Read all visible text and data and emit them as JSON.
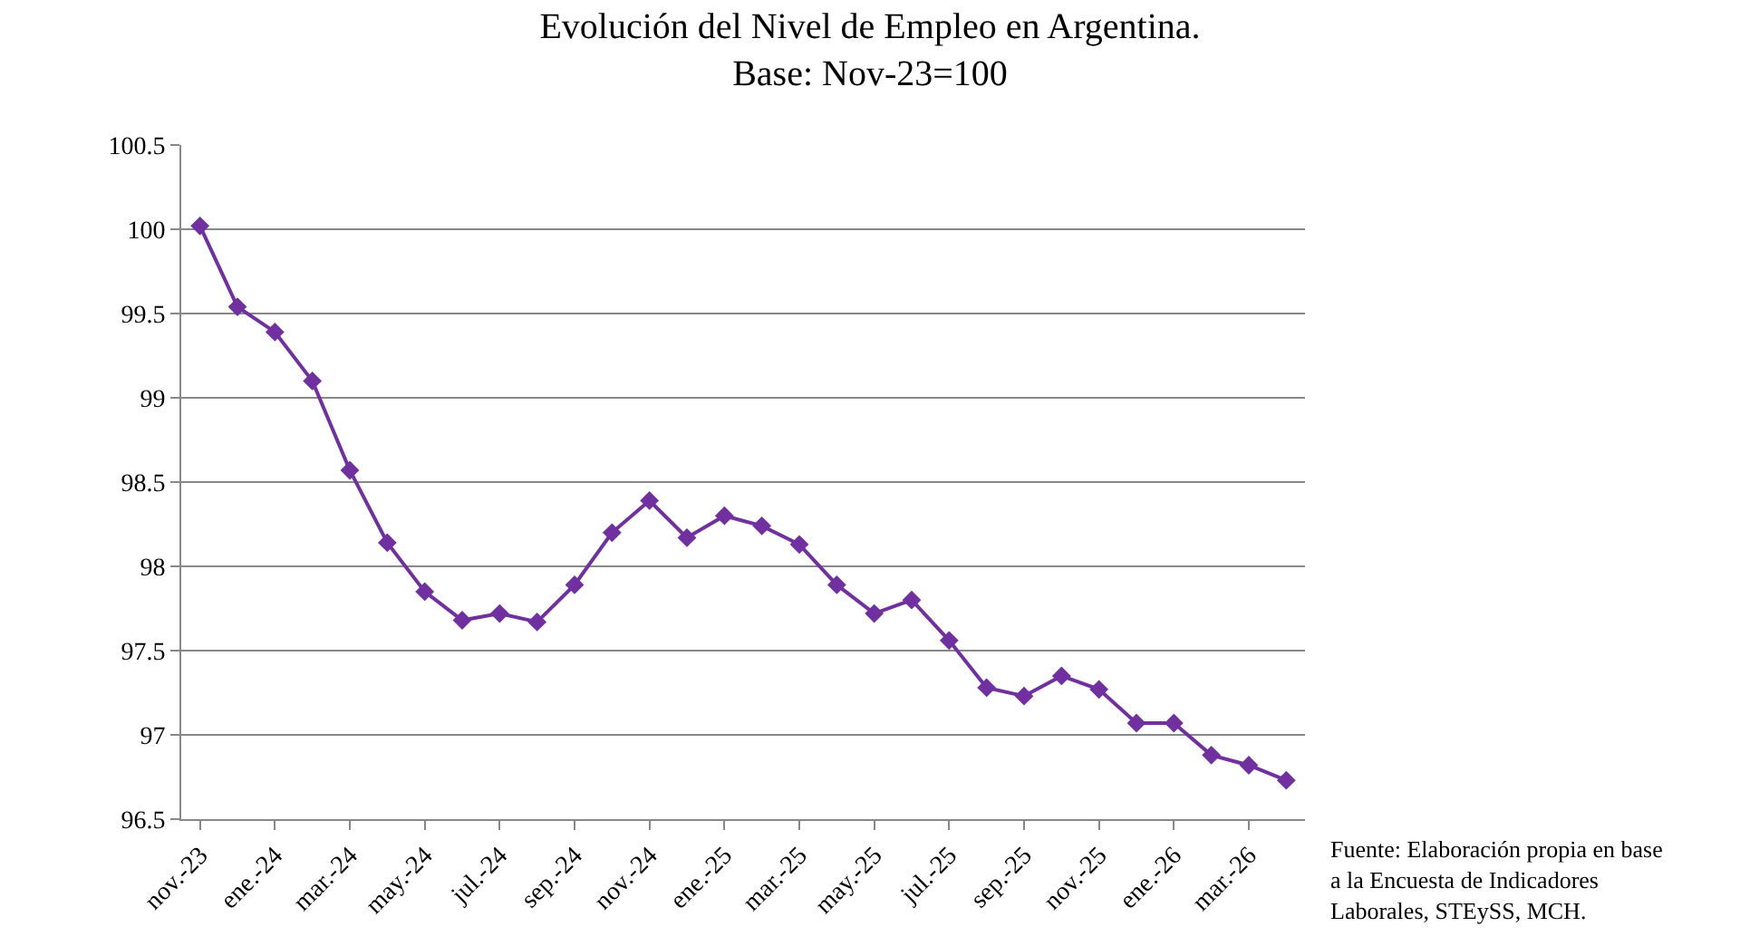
{
  "chart_data": {
    "type": "line",
    "title": "Evolución del Nivel de Empleo en Argentina.\nBase: Nov-23=100",
    "categories": [
      "nov.-23",
      null,
      "ene.-24",
      null,
      "mar.-24",
      null,
      "may.-24",
      null,
      "jul.-24",
      null,
      "sep.-24",
      null,
      "nov.-24",
      null,
      "ene.-25",
      null,
      "mar.-25",
      null,
      "may.-25",
      null,
      "jul.-25",
      null,
      "sep.-25",
      null,
      "nov.-25",
      null,
      "ene.-26",
      null,
      "mar.-26",
      null
    ],
    "series": [
      {
        "color": "#7030a0",
        "values": [
          100.02,
          99.54,
          99.39,
          99.1,
          98.57,
          98.14,
          97.85,
          97.68,
          97.72,
          97.67,
          97.89,
          98.2,
          98.39,
          98.17,
          98.3,
          98.24,
          98.13,
          97.89,
          97.72,
          97.8,
          97.56,
          97.28,
          97.23,
          97.35,
          97.27,
          97.07,
          97.07,
          96.88,
          96.82,
          96.73
        ]
      }
    ],
    "ylim": [
      96.5,
      100.5
    ],
    "yticks": [
      96.5,
      97,
      97.5,
      98,
      98.5,
      99,
      99.5,
      100,
      100.5
    ],
    "grid": "y",
    "marker": "diamond",
    "line_style": "solid",
    "annotations": [
      "Fuente: Elaboración propia en base\na la Encuesta de Indicadores\nLaborales, STEySS, MCH."
    ]
  }
}
